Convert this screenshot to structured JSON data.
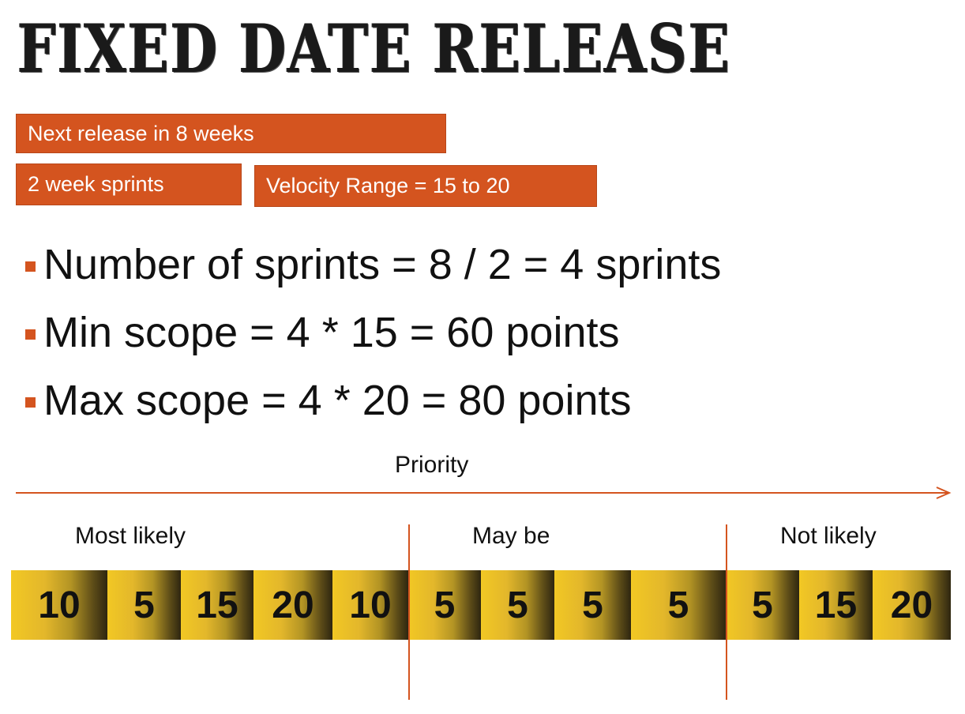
{
  "title": "FIXED DATE RELEASE",
  "tags": {
    "release": "Next release in 8 weeks",
    "sprints": "2 week sprints",
    "velocity": "Velocity Range = 15 to 20"
  },
  "bullets": [
    "Number of sprints = 8 / 2 = 4 sprints",
    "Min scope = 4 * 15 = 60 points",
    "Max scope = 4 * 20 = 80 points"
  ],
  "priority": {
    "label": "Priority"
  },
  "groups": [
    "Most likely",
    "May be",
    "Not likely"
  ],
  "items": [
    "10",
    "5",
    "15",
    "20",
    "10",
    "5",
    "5",
    "5",
    "5",
    "5",
    "15",
    "20"
  ],
  "colors": {
    "accent": "#d4541f",
    "block": "#f2c824"
  }
}
